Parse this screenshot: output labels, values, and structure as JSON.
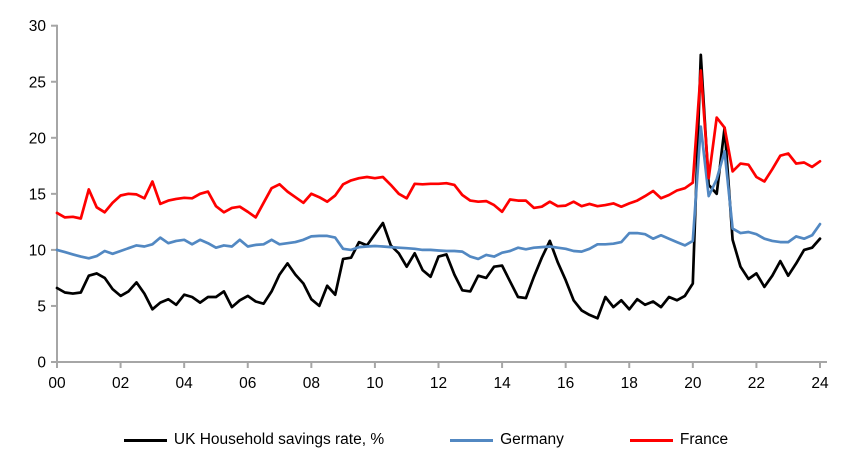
{
  "chart_data": {
    "type": "line",
    "title": "",
    "xlabel": "",
    "ylabel": "",
    "x_unit": "quarterly",
    "x_start_year": 2000,
    "x_end_year": 2024,
    "ylim": [
      0,
      30
    ],
    "y_ticks": [
      0,
      5,
      10,
      15,
      20,
      25,
      30
    ],
    "x_tick_labels": [
      "00",
      "02",
      "04",
      "06",
      "08",
      "10",
      "12",
      "14",
      "16",
      "18",
      "20",
      "22",
      "24"
    ],
    "grid": false,
    "legend_position": "bottom",
    "axis_color": "#a6a6a6",
    "tick_label_color": "#000000",
    "series": [
      {
        "name": "UK Household savings rate, %",
        "color": "#000000",
        "values": [
          6.6,
          6.2,
          6.1,
          6.2,
          7.7,
          7.9,
          7.5,
          6.5,
          5.9,
          6.3,
          7.1,
          6.1,
          4.7,
          5.3,
          5.6,
          5.1,
          6.0,
          5.8,
          5.3,
          5.8,
          5.8,
          6.3,
          4.9,
          5.5,
          5.9,
          5.4,
          5.2,
          6.3,
          7.8,
          8.8,
          7.8,
          7.0,
          5.6,
          5.0,
          6.8,
          6.0,
          9.2,
          9.3,
          10.7,
          10.4,
          11.4,
          12.4,
          10.4,
          9.7,
          8.5,
          9.7,
          8.2,
          7.6,
          9.4,
          9.6,
          7.8,
          6.4,
          6.3,
          7.7,
          7.5,
          8.5,
          8.6,
          7.2,
          5.8,
          5.7,
          7.6,
          9.3,
          10.8,
          8.9,
          7.3,
          5.5,
          4.6,
          4.2,
          3.9,
          5.8,
          4.9,
          5.5,
          4.7,
          5.6,
          5.1,
          5.4,
          4.9,
          5.8,
          5.5,
          5.9,
          7.0,
          27.4,
          15.8,
          15.0,
          20.9,
          10.9,
          8.5,
          7.4,
          7.9,
          6.7,
          7.7,
          9.0,
          7.7,
          8.8,
          10.0,
          10.2,
          11.0
        ]
      },
      {
        "name": "Germany",
        "color": "#5288c2",
        "values": [
          10.0,
          9.8,
          9.6,
          9.4,
          9.25,
          9.45,
          9.9,
          9.65,
          9.9,
          10.15,
          10.4,
          10.3,
          10.5,
          11.1,
          10.6,
          10.8,
          10.9,
          10.5,
          10.9,
          10.6,
          10.2,
          10.4,
          10.3,
          10.9,
          10.3,
          10.45,
          10.5,
          10.9,
          10.5,
          10.6,
          10.7,
          10.9,
          11.2,
          11.25,
          11.25,
          11.1,
          10.1,
          10.0,
          10.25,
          10.3,
          10.35,
          10.3,
          10.25,
          10.2,
          10.15,
          10.1,
          10.0,
          10.0,
          9.95,
          9.9,
          9.9,
          9.85,
          9.4,
          9.2,
          9.55,
          9.4,
          9.75,
          9.9,
          10.2,
          10.05,
          10.2,
          10.25,
          10.3,
          10.2,
          10.1,
          9.9,
          9.85,
          10.1,
          10.5,
          10.5,
          10.55,
          10.7,
          11.5,
          11.5,
          11.4,
          11.0,
          11.3,
          11.0,
          10.7,
          10.4,
          10.8,
          21.0,
          14.8,
          16.3,
          18.8,
          11.9,
          11.5,
          11.6,
          11.4,
          11.0,
          10.8,
          10.7,
          10.7,
          11.2,
          11.0,
          11.3,
          12.3
        ]
      },
      {
        "name": "France",
        "color": "#ff0000",
        "values": [
          13.3,
          12.9,
          12.95,
          12.8,
          15.4,
          13.8,
          13.35,
          14.2,
          14.85,
          15.0,
          14.95,
          14.6,
          16.1,
          14.1,
          14.4,
          14.55,
          14.65,
          14.6,
          15.0,
          15.2,
          13.9,
          13.35,
          13.75,
          13.85,
          13.4,
          12.9,
          14.2,
          15.5,
          15.85,
          15.2,
          14.7,
          14.2,
          15.0,
          14.7,
          14.3,
          14.85,
          15.85,
          16.2,
          16.4,
          16.5,
          16.4,
          16.5,
          15.8,
          15.0,
          14.6,
          15.9,
          15.85,
          15.9,
          15.9,
          15.95,
          15.8,
          14.9,
          14.4,
          14.3,
          14.35,
          14.0,
          13.4,
          14.5,
          14.4,
          14.4,
          13.75,
          13.85,
          14.3,
          13.9,
          13.95,
          14.3,
          13.9,
          14.1,
          13.9,
          14.0,
          14.15,
          13.85,
          14.15,
          14.4,
          14.8,
          15.25,
          14.6,
          14.9,
          15.3,
          15.5,
          16.0,
          26.0,
          16.4,
          21.8,
          20.9,
          17.0,
          17.7,
          17.6,
          16.5,
          16.1,
          17.2,
          18.4,
          18.6,
          17.7,
          17.8,
          17.4,
          17.9
        ]
      }
    ]
  }
}
